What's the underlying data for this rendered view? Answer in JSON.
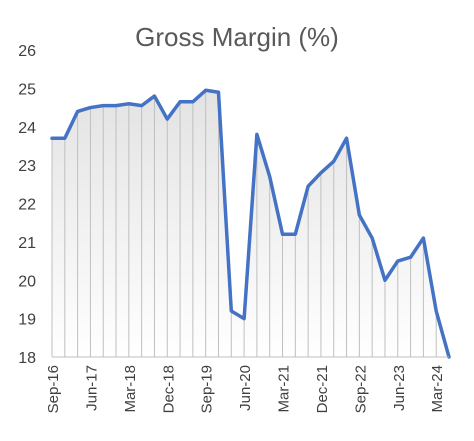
{
  "chart_data": {
    "type": "area",
    "title": "Gross Margin (%)",
    "xlabel": "",
    "ylabel": "",
    "ylim": [
      18,
      26
    ],
    "y_ticks": [
      18,
      19,
      20,
      21,
      22,
      23,
      24,
      25,
      26
    ],
    "x_tick_labels": [
      "Sep-16",
      "Jun-17",
      "Mar-18",
      "Dec-18",
      "Sep-19",
      "Jun-20",
      "Mar-21",
      "Dec-21",
      "Sep-22",
      "Jun-23",
      "Mar-24"
    ],
    "grid": false,
    "legend": "none",
    "colors": {
      "line": "#4472C4",
      "fill_top": "#E3E3E3",
      "fill_bottom": "#FFFFFF",
      "drop_lines": "#BFBFBF"
    },
    "series": [
      {
        "x": [
          "Sep-16",
          "Dec-16",
          "Mar-17",
          "Jun-17",
          "Sep-17",
          "Dec-17",
          "Mar-18",
          "Jun-18",
          "Sep-18",
          "Dec-18",
          "Mar-19",
          "Jun-19",
          "Sep-19",
          "Dec-19",
          "Mar-20",
          "Jun-20",
          "Sep-20",
          "Dec-20",
          "Mar-21",
          "Jun-21",
          "Sep-21",
          "Dec-21",
          "Mar-22",
          "Jun-22",
          "Sep-22",
          "Dec-22",
          "Mar-23",
          "Jun-23",
          "Sep-23",
          "Dec-23",
          "Mar-24",
          "Jun-24"
        ],
        "values": [
          23.7,
          23.7,
          24.4,
          24.5,
          24.55,
          24.55,
          24.6,
          24.55,
          24.8,
          24.2,
          24.65,
          24.65,
          24.95,
          24.9,
          19.2,
          19.0,
          23.8,
          22.7,
          21.2,
          21.2,
          22.45,
          22.8,
          23.1,
          23.7,
          21.7,
          21.1,
          20.0,
          20.5,
          20.6,
          21.1,
          19.2,
          18.0
        ]
      }
    ]
  }
}
